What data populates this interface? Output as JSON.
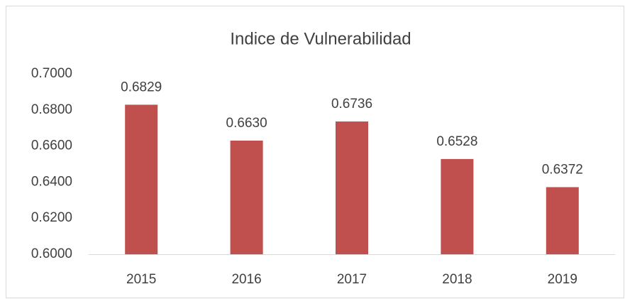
{
  "chart_data": {
    "type": "bar",
    "title": "Indice de Vulnerabilidad",
    "categories": [
      "2015",
      "2016",
      "2017",
      "2018",
      "2019"
    ],
    "values": [
      0.6829,
      0.663,
      0.6736,
      0.6528,
      0.6372
    ],
    "value_labels": [
      "0.6829",
      "0.6630",
      "0.6736",
      "0.6528",
      "0.6372"
    ],
    "color": "#c0504d",
    "ylim": [
      0.6,
      0.7
    ],
    "yticks": [
      {
        "value": 0.6,
        "label": "0.6000"
      },
      {
        "value": 0.62,
        "label": "0.6200"
      },
      {
        "value": 0.64,
        "label": "0.6400"
      },
      {
        "value": 0.66,
        "label": "0.6600"
      },
      {
        "value": 0.68,
        "label": "0.6800"
      },
      {
        "value": 0.7,
        "label": "0.7000"
      }
    ],
    "grid": false
  }
}
